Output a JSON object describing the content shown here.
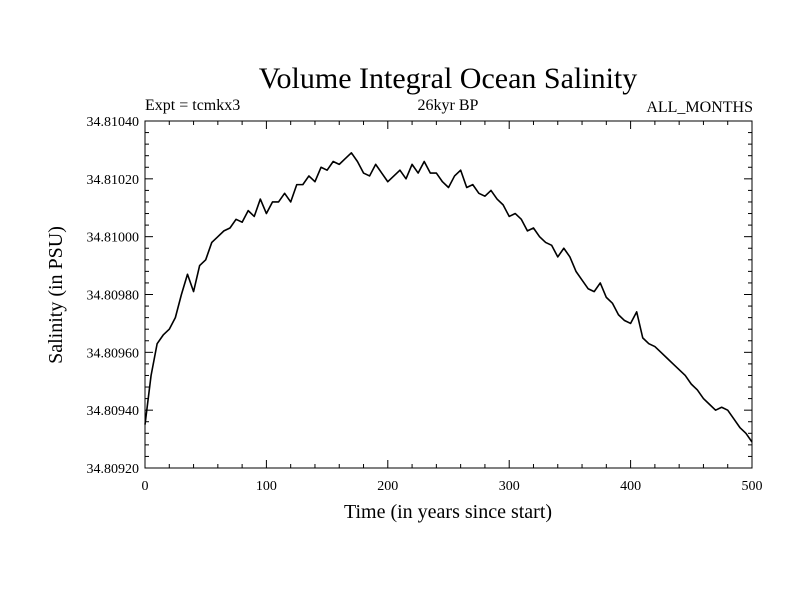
{
  "chart_data": {
    "type": "line",
    "title": "Volume Integral Ocean Salinity",
    "subtitle_left": "Expt = tcmkx3",
    "subtitle_center": "26kyr BP",
    "subtitle_right": "ALL_MONTHS",
    "xlabel": "Time (in years since start)",
    "ylabel": "Salinity (in PSU)",
    "xlim": [
      0,
      500
    ],
    "ylim": [
      34.8092,
      34.8104
    ],
    "xticks": [
      0,
      100,
      200,
      300,
      400,
      500
    ],
    "xtick_labels": [
      "0",
      "100",
      "200",
      "300",
      "400",
      "500"
    ],
    "yticks": [
      34.8092,
      34.8094,
      34.8096,
      34.8098,
      34.81,
      34.8102,
      34.8104
    ],
    "ytick_labels": [
      "34.80920",
      "34.80940",
      "34.80960",
      "34.80980",
      "34.81000",
      "34.81020",
      "34.81040"
    ],
    "grid": false,
    "series": [
      {
        "name": "salinity",
        "x": [
          0,
          5,
          10,
          15,
          20,
          25,
          30,
          35,
          40,
          45,
          50,
          55,
          60,
          65,
          70,
          75,
          80,
          85,
          90,
          95,
          100,
          105,
          110,
          115,
          120,
          125,
          130,
          135,
          140,
          145,
          150,
          155,
          160,
          165,
          170,
          175,
          180,
          185,
          190,
          195,
          200,
          205,
          210,
          215,
          220,
          225,
          230,
          235,
          240,
          245,
          250,
          255,
          260,
          265,
          270,
          275,
          280,
          285,
          290,
          295,
          300,
          305,
          310,
          315,
          320,
          325,
          330,
          335,
          340,
          345,
          350,
          355,
          360,
          365,
          370,
          375,
          380,
          385,
          390,
          395,
          400,
          405,
          410,
          415,
          420,
          425,
          430,
          435,
          440,
          445,
          450,
          455,
          460,
          465,
          470,
          475,
          480,
          485,
          490,
          495,
          500
        ],
        "values": [
          34.80935,
          34.80952,
          34.80963,
          34.80966,
          34.80968,
          34.80972,
          34.8098,
          34.80987,
          34.80981,
          34.8099,
          34.80992,
          34.80998,
          34.81,
          34.81002,
          34.81003,
          34.81006,
          34.81005,
          34.81009,
          34.81007,
          34.81013,
          34.81008,
          34.81012,
          34.81012,
          34.81015,
          34.81012,
          34.81018,
          34.81018,
          34.81021,
          34.81019,
          34.81024,
          34.81023,
          34.81026,
          34.81025,
          34.81027,
          34.81029,
          34.81026,
          34.81022,
          34.81021,
          34.81025,
          34.81022,
          34.81019,
          34.81021,
          34.81023,
          34.8102,
          34.81025,
          34.81022,
          34.81026,
          34.81022,
          34.81022,
          34.81019,
          34.81017,
          34.81021,
          34.81023,
          34.81017,
          34.81018,
          34.81015,
          34.81014,
          34.81016,
          34.81013,
          34.81011,
          34.81007,
          34.81008,
          34.81006,
          34.81002,
          34.81003,
          34.81,
          34.80998,
          34.80997,
          34.80993,
          34.80996,
          34.80993,
          34.80988,
          34.80985,
          34.80982,
          34.80981,
          34.80984,
          34.80979,
          34.80977,
          34.80973,
          34.80971,
          34.8097,
          34.80974,
          34.80965,
          34.80963,
          34.80962,
          34.8096,
          34.80958,
          34.80956,
          34.80954,
          34.80952,
          34.80949,
          34.80947,
          34.80944,
          34.80942,
          34.8094,
          34.80941,
          34.8094,
          34.80937,
          34.80934,
          34.80932,
          34.80929
        ]
      }
    ]
  }
}
